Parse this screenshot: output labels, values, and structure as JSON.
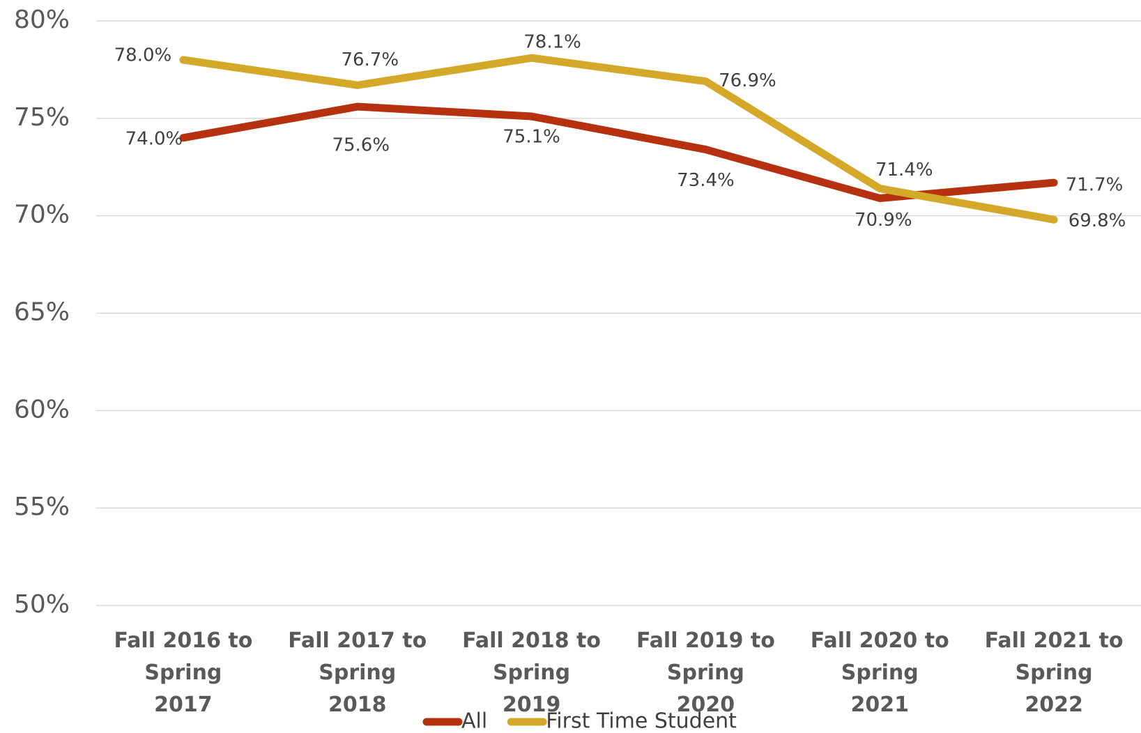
{
  "chart_data": {
    "type": "line",
    "categories": [
      "Fall 2016 to Spring 2017",
      "Fall 2017 to Spring 2018",
      "Fall 2018 to Spring 2019",
      "Fall 2019 to Spring 2020",
      "Fall 2020 to Spring 2021",
      "Fall 2021 to Spring 2022"
    ],
    "series": [
      {
        "name": "All",
        "color": "#b5310f",
        "values": [
          74.0,
          75.6,
          75.1,
          73.4,
          70.9,
          71.7
        ],
        "value_labels": [
          "74.0%",
          "75.6%",
          "75.1%",
          "73.4%",
          "70.9%",
          "71.7%"
        ]
      },
      {
        "name": "First Time Student",
        "color": "#d4a829",
        "values": [
          78.0,
          76.7,
          78.1,
          76.9,
          71.4,
          69.8
        ],
        "value_labels": [
          "78.0%",
          "76.7%",
          "78.1%",
          "76.9%",
          "71.4%",
          "69.8%"
        ]
      }
    ],
    "ylim": [
      50,
      80
    ],
    "yticks": [
      {
        "value": 50,
        "label": "50%"
      },
      {
        "value": 55,
        "label": "55%"
      },
      {
        "value": 60,
        "label": "60%"
      },
      {
        "value": 65,
        "label": "65%"
      },
      {
        "value": 70,
        "label": "70%"
      },
      {
        "value": 75,
        "label": "75%"
      },
      {
        "value": 80,
        "label": "80%"
      }
    ],
    "grid": true,
    "legend": "bottom"
  }
}
